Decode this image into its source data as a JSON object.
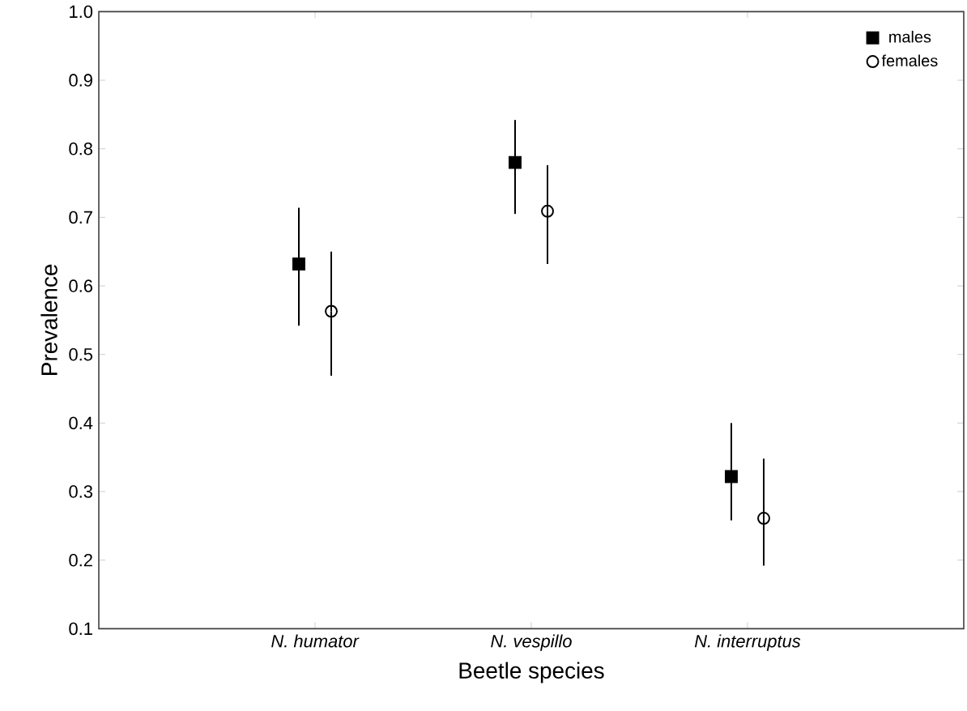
{
  "chart_data": {
    "type": "scatter",
    "xlabel": "Beetle species",
    "ylabel": "Prevalence",
    "categories": [
      "*N. humator*",
      "*N. vespillo*",
      "*N. interruptus*"
    ],
    "series": [
      {
        "name": "males",
        "color": "#000000",
        "marker": "square",
        "values": [
          0.632,
          0.78,
          0.322
        ],
        "errors": [
          [
            0.542,
            0.714
          ],
          [
            0.705,
            0.842
          ],
          [
            0.258,
            0.4
          ]
        ]
      },
      {
        "name": "females",
        "color": "#000000",
        "marker": "circle",
        "values": [
          0.563,
          0.709,
          0.261
        ],
        "errors": [
          [
            0.469,
            0.65
          ],
          [
            0.632,
            0.776
          ],
          [
            0.192,
            0.348
          ]
        ]
      }
    ],
    "ylim": [
      0.1,
      1.0
    ],
    "yticks": [
      0.1,
      0.2,
      0.3,
      0.4,
      0.5,
      0.6,
      0.7,
      0.8,
      0.9,
      {
        "value": 1.0,
        "label": "1.0"
      }
    ],
    "legend": "top right",
    "grid": false
  }
}
